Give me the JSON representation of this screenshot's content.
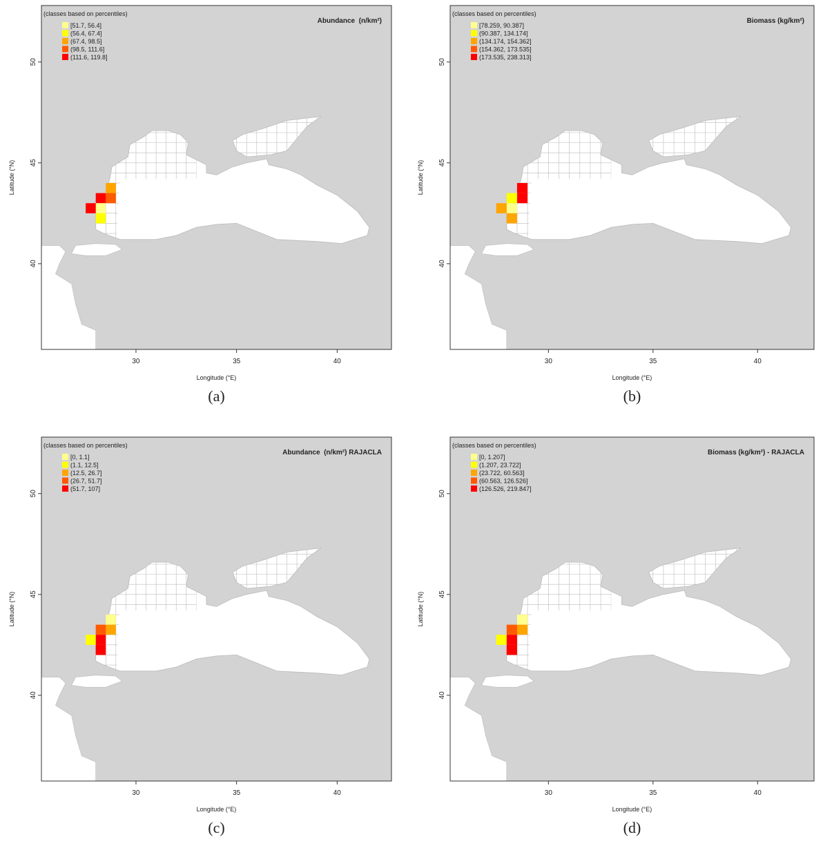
{
  "map": {
    "xlim": [
      25.3,
      42.7
    ],
    "ylim": [
      35.75,
      52.8
    ],
    "x_label": "Longitude (°E)",
    "y_label": "Latitude (°N)",
    "xticks": [
      30,
      35,
      40
    ],
    "yticks": [
      50,
      45,
      40
    ],
    "legend_heading": "(classes based on percentiles)",
    "class_colors": [
      "#ffff8c",
      "#ffff00",
      "#ffa500",
      "#ff5a00",
      "#ff0000"
    ]
  },
  "panels": [
    {
      "caption": "(a)",
      "title": "Abundance  (n/km²)",
      "legend": [
        "[51.7, 56.4]",
        "(56.4, 67.4]",
        "(67.4, 98.5]",
        "(98.5, 111.6]",
        "(111.6, 119.8]"
      ]
    },
    {
      "caption": "(b)",
      "title": "Biomass (kg/km²)",
      "legend": [
        "[78.259, 90.387]",
        "(90.387, 134.174]",
        "(134.174, 154.362]",
        "(154.362, 173.535]",
        "(173.535, 238.313]"
      ]
    },
    {
      "caption": "(c)",
      "title": "Abundance  (n/km²) RAJACLA",
      "legend": [
        "[0, 1.1]",
        "(1.1, 12.5]",
        "(12.5, 26.7]",
        "(26.7, 51.7]",
        "(51.7, 107]"
      ]
    },
    {
      "caption": "(d)",
      "title": "Biomass (kg/km²) - RAJACLA",
      "legend": [
        "[0, 1.207]",
        "(1.207, 23.722]",
        "(23.722, 60.563]",
        "(60.563, 126.526]",
        "(126.526, 219.847]"
      ]
    }
  ]
}
